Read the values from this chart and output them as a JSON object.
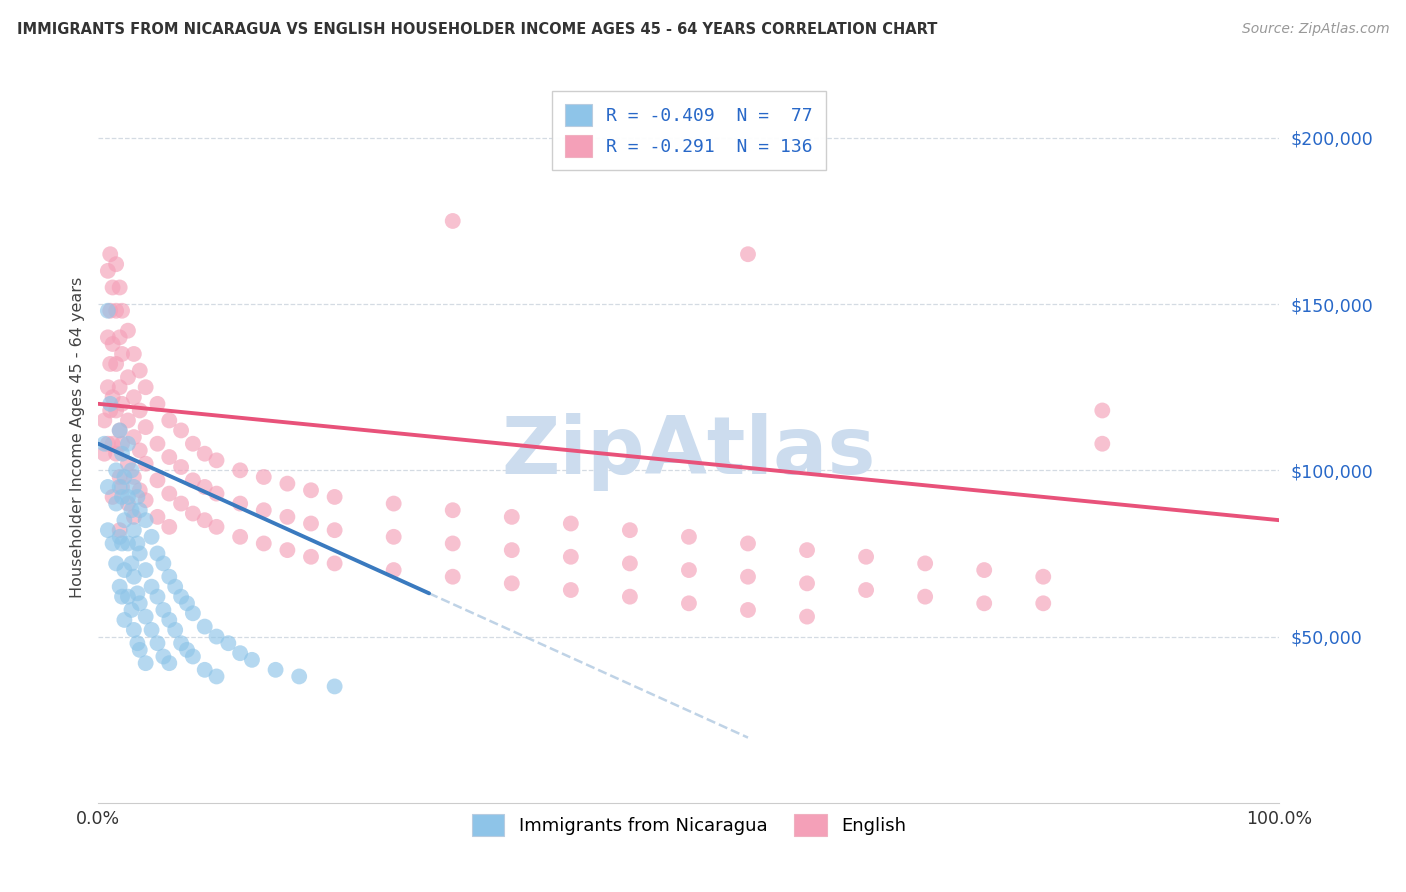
{
  "title": "IMMIGRANTS FROM NICARAGUA VS ENGLISH HOUSEHOLDER INCOME AGES 45 - 64 YEARS CORRELATION CHART",
  "source": "Source: ZipAtlas.com",
  "ylabel": "Householder Income Ages 45 - 64 years",
  "xlim": [
    0,
    1.0
  ],
  "ylim": [
    0,
    220000
  ],
  "ytick_values": [
    50000,
    100000,
    150000,
    200000
  ],
  "ytick_labels": [
    "$50,000",
    "$100,000",
    "$150,000",
    "$200,000"
  ],
  "xtick_positions": [
    0.0,
    1.0
  ],
  "xtick_labels": [
    "0.0%",
    "100.0%"
  ],
  "r_nicaragua": -0.409,
  "n_nicaragua": 77,
  "r_english": -0.291,
  "n_english": 136,
  "color_nicaragua": "#8ec4e8",
  "color_english": "#f4a0b8",
  "color_nicaragua_line": "#3a7abf",
  "color_english_line": "#e8527a",
  "color_gray_dash": "#b0c8e0",
  "background_color": "#ffffff",
  "grid_color": "#d0d8e0",
  "nicaragua_scatter": [
    [
      0.005,
      108000
    ],
    [
      0.008,
      95000
    ],
    [
      0.008,
      82000
    ],
    [
      0.01,
      120000
    ],
    [
      0.012,
      78000
    ],
    [
      0.015,
      100000
    ],
    [
      0.015,
      90000
    ],
    [
      0.015,
      72000
    ],
    [
      0.018,
      112000
    ],
    [
      0.018,
      95000
    ],
    [
      0.018,
      80000
    ],
    [
      0.018,
      65000
    ],
    [
      0.02,
      105000
    ],
    [
      0.02,
      92000
    ],
    [
      0.02,
      78000
    ],
    [
      0.02,
      62000
    ],
    [
      0.022,
      98000
    ],
    [
      0.022,
      85000
    ],
    [
      0.022,
      70000
    ],
    [
      0.022,
      55000
    ],
    [
      0.025,
      108000
    ],
    [
      0.025,
      92000
    ],
    [
      0.025,
      78000
    ],
    [
      0.025,
      62000
    ],
    [
      0.028,
      100000
    ],
    [
      0.028,
      88000
    ],
    [
      0.028,
      72000
    ],
    [
      0.028,
      58000
    ],
    [
      0.03,
      95000
    ],
    [
      0.03,
      82000
    ],
    [
      0.03,
      68000
    ],
    [
      0.03,
      52000
    ],
    [
      0.033,
      92000
    ],
    [
      0.033,
      78000
    ],
    [
      0.033,
      63000
    ],
    [
      0.033,
      48000
    ],
    [
      0.035,
      88000
    ],
    [
      0.035,
      75000
    ],
    [
      0.035,
      60000
    ],
    [
      0.035,
      46000
    ],
    [
      0.04,
      85000
    ],
    [
      0.04,
      70000
    ],
    [
      0.04,
      56000
    ],
    [
      0.04,
      42000
    ],
    [
      0.045,
      80000
    ],
    [
      0.045,
      65000
    ],
    [
      0.045,
      52000
    ],
    [
      0.05,
      75000
    ],
    [
      0.05,
      62000
    ],
    [
      0.05,
      48000
    ],
    [
      0.055,
      72000
    ],
    [
      0.055,
      58000
    ],
    [
      0.055,
      44000
    ],
    [
      0.06,
      68000
    ],
    [
      0.06,
      55000
    ],
    [
      0.06,
      42000
    ],
    [
      0.065,
      65000
    ],
    [
      0.065,
      52000
    ],
    [
      0.07,
      62000
    ],
    [
      0.07,
      48000
    ],
    [
      0.075,
      60000
    ],
    [
      0.075,
      46000
    ],
    [
      0.08,
      57000
    ],
    [
      0.08,
      44000
    ],
    [
      0.09,
      53000
    ],
    [
      0.09,
      40000
    ],
    [
      0.1,
      50000
    ],
    [
      0.1,
      38000
    ],
    [
      0.11,
      48000
    ],
    [
      0.12,
      45000
    ],
    [
      0.13,
      43000
    ],
    [
      0.15,
      40000
    ],
    [
      0.17,
      38000
    ],
    [
      0.2,
      35000
    ],
    [
      0.008,
      148000
    ]
  ],
  "english_scatter": [
    [
      0.005,
      115000
    ],
    [
      0.005,
      105000
    ],
    [
      0.008,
      160000
    ],
    [
      0.008,
      140000
    ],
    [
      0.008,
      125000
    ],
    [
      0.008,
      108000
    ],
    [
      0.01,
      165000
    ],
    [
      0.01,
      148000
    ],
    [
      0.01,
      132000
    ],
    [
      0.01,
      118000
    ],
    [
      0.012,
      155000
    ],
    [
      0.012,
      138000
    ],
    [
      0.012,
      122000
    ],
    [
      0.012,
      108000
    ],
    [
      0.015,
      162000
    ],
    [
      0.015,
      148000
    ],
    [
      0.015,
      132000
    ],
    [
      0.015,
      118000
    ],
    [
      0.015,
      105000
    ],
    [
      0.018,
      155000
    ],
    [
      0.018,
      140000
    ],
    [
      0.018,
      125000
    ],
    [
      0.018,
      112000
    ],
    [
      0.018,
      98000
    ],
    [
      0.02,
      148000
    ],
    [
      0.02,
      135000
    ],
    [
      0.02,
      120000
    ],
    [
      0.02,
      108000
    ],
    [
      0.02,
      95000
    ],
    [
      0.025,
      142000
    ],
    [
      0.025,
      128000
    ],
    [
      0.025,
      115000
    ],
    [
      0.025,
      102000
    ],
    [
      0.025,
      90000
    ],
    [
      0.03,
      135000
    ],
    [
      0.03,
      122000
    ],
    [
      0.03,
      110000
    ],
    [
      0.03,
      98000
    ],
    [
      0.03,
      86000
    ],
    [
      0.035,
      130000
    ],
    [
      0.035,
      118000
    ],
    [
      0.035,
      106000
    ],
    [
      0.035,
      94000
    ],
    [
      0.04,
      125000
    ],
    [
      0.04,
      113000
    ],
    [
      0.04,
      102000
    ],
    [
      0.04,
      91000
    ],
    [
      0.05,
      120000
    ],
    [
      0.05,
      108000
    ],
    [
      0.05,
      97000
    ],
    [
      0.05,
      86000
    ],
    [
      0.06,
      115000
    ],
    [
      0.06,
      104000
    ],
    [
      0.06,
      93000
    ],
    [
      0.06,
      83000
    ],
    [
      0.07,
      112000
    ],
    [
      0.07,
      101000
    ],
    [
      0.07,
      90000
    ],
    [
      0.08,
      108000
    ],
    [
      0.08,
      97000
    ],
    [
      0.08,
      87000
    ],
    [
      0.09,
      105000
    ],
    [
      0.09,
      95000
    ],
    [
      0.09,
      85000
    ],
    [
      0.1,
      103000
    ],
    [
      0.1,
      93000
    ],
    [
      0.1,
      83000
    ],
    [
      0.12,
      100000
    ],
    [
      0.12,
      90000
    ],
    [
      0.12,
      80000
    ],
    [
      0.14,
      98000
    ],
    [
      0.14,
      88000
    ],
    [
      0.14,
      78000
    ],
    [
      0.16,
      96000
    ],
    [
      0.16,
      86000
    ],
    [
      0.16,
      76000
    ],
    [
      0.18,
      94000
    ],
    [
      0.18,
      84000
    ],
    [
      0.18,
      74000
    ],
    [
      0.2,
      92000
    ],
    [
      0.2,
      82000
    ],
    [
      0.2,
      72000
    ],
    [
      0.25,
      90000
    ],
    [
      0.25,
      80000
    ],
    [
      0.25,
      70000
    ],
    [
      0.3,
      88000
    ],
    [
      0.3,
      78000
    ],
    [
      0.3,
      68000
    ],
    [
      0.35,
      86000
    ],
    [
      0.35,
      76000
    ],
    [
      0.35,
      66000
    ],
    [
      0.4,
      84000
    ],
    [
      0.4,
      74000
    ],
    [
      0.4,
      64000
    ],
    [
      0.45,
      82000
    ],
    [
      0.45,
      72000
    ],
    [
      0.45,
      62000
    ],
    [
      0.5,
      80000
    ],
    [
      0.5,
      70000
    ],
    [
      0.5,
      60000
    ],
    [
      0.55,
      78000
    ],
    [
      0.55,
      68000
    ],
    [
      0.55,
      58000
    ],
    [
      0.6,
      76000
    ],
    [
      0.6,
      66000
    ],
    [
      0.6,
      56000
    ],
    [
      0.65,
      74000
    ],
    [
      0.65,
      64000
    ],
    [
      0.7,
      72000
    ],
    [
      0.7,
      62000
    ],
    [
      0.75,
      70000
    ],
    [
      0.75,
      60000
    ],
    [
      0.8,
      68000
    ],
    [
      0.8,
      60000
    ],
    [
      0.85,
      108000
    ],
    [
      0.85,
      118000
    ],
    [
      0.3,
      175000
    ],
    [
      0.55,
      165000
    ],
    [
      0.012,
      92000
    ],
    [
      0.018,
      82000
    ]
  ],
  "nic_trendline_x0": 0.0,
  "nic_trendline_y0": 108000,
  "nic_trendline_x1": 0.28,
  "nic_trendline_y1": 63000,
  "nic_trendline_xdash_end": 0.55,
  "eng_trendline_x0": 0.0,
  "eng_trendline_y0": 120000,
  "eng_trendline_x1": 1.0,
  "eng_trendline_y1": 85000
}
